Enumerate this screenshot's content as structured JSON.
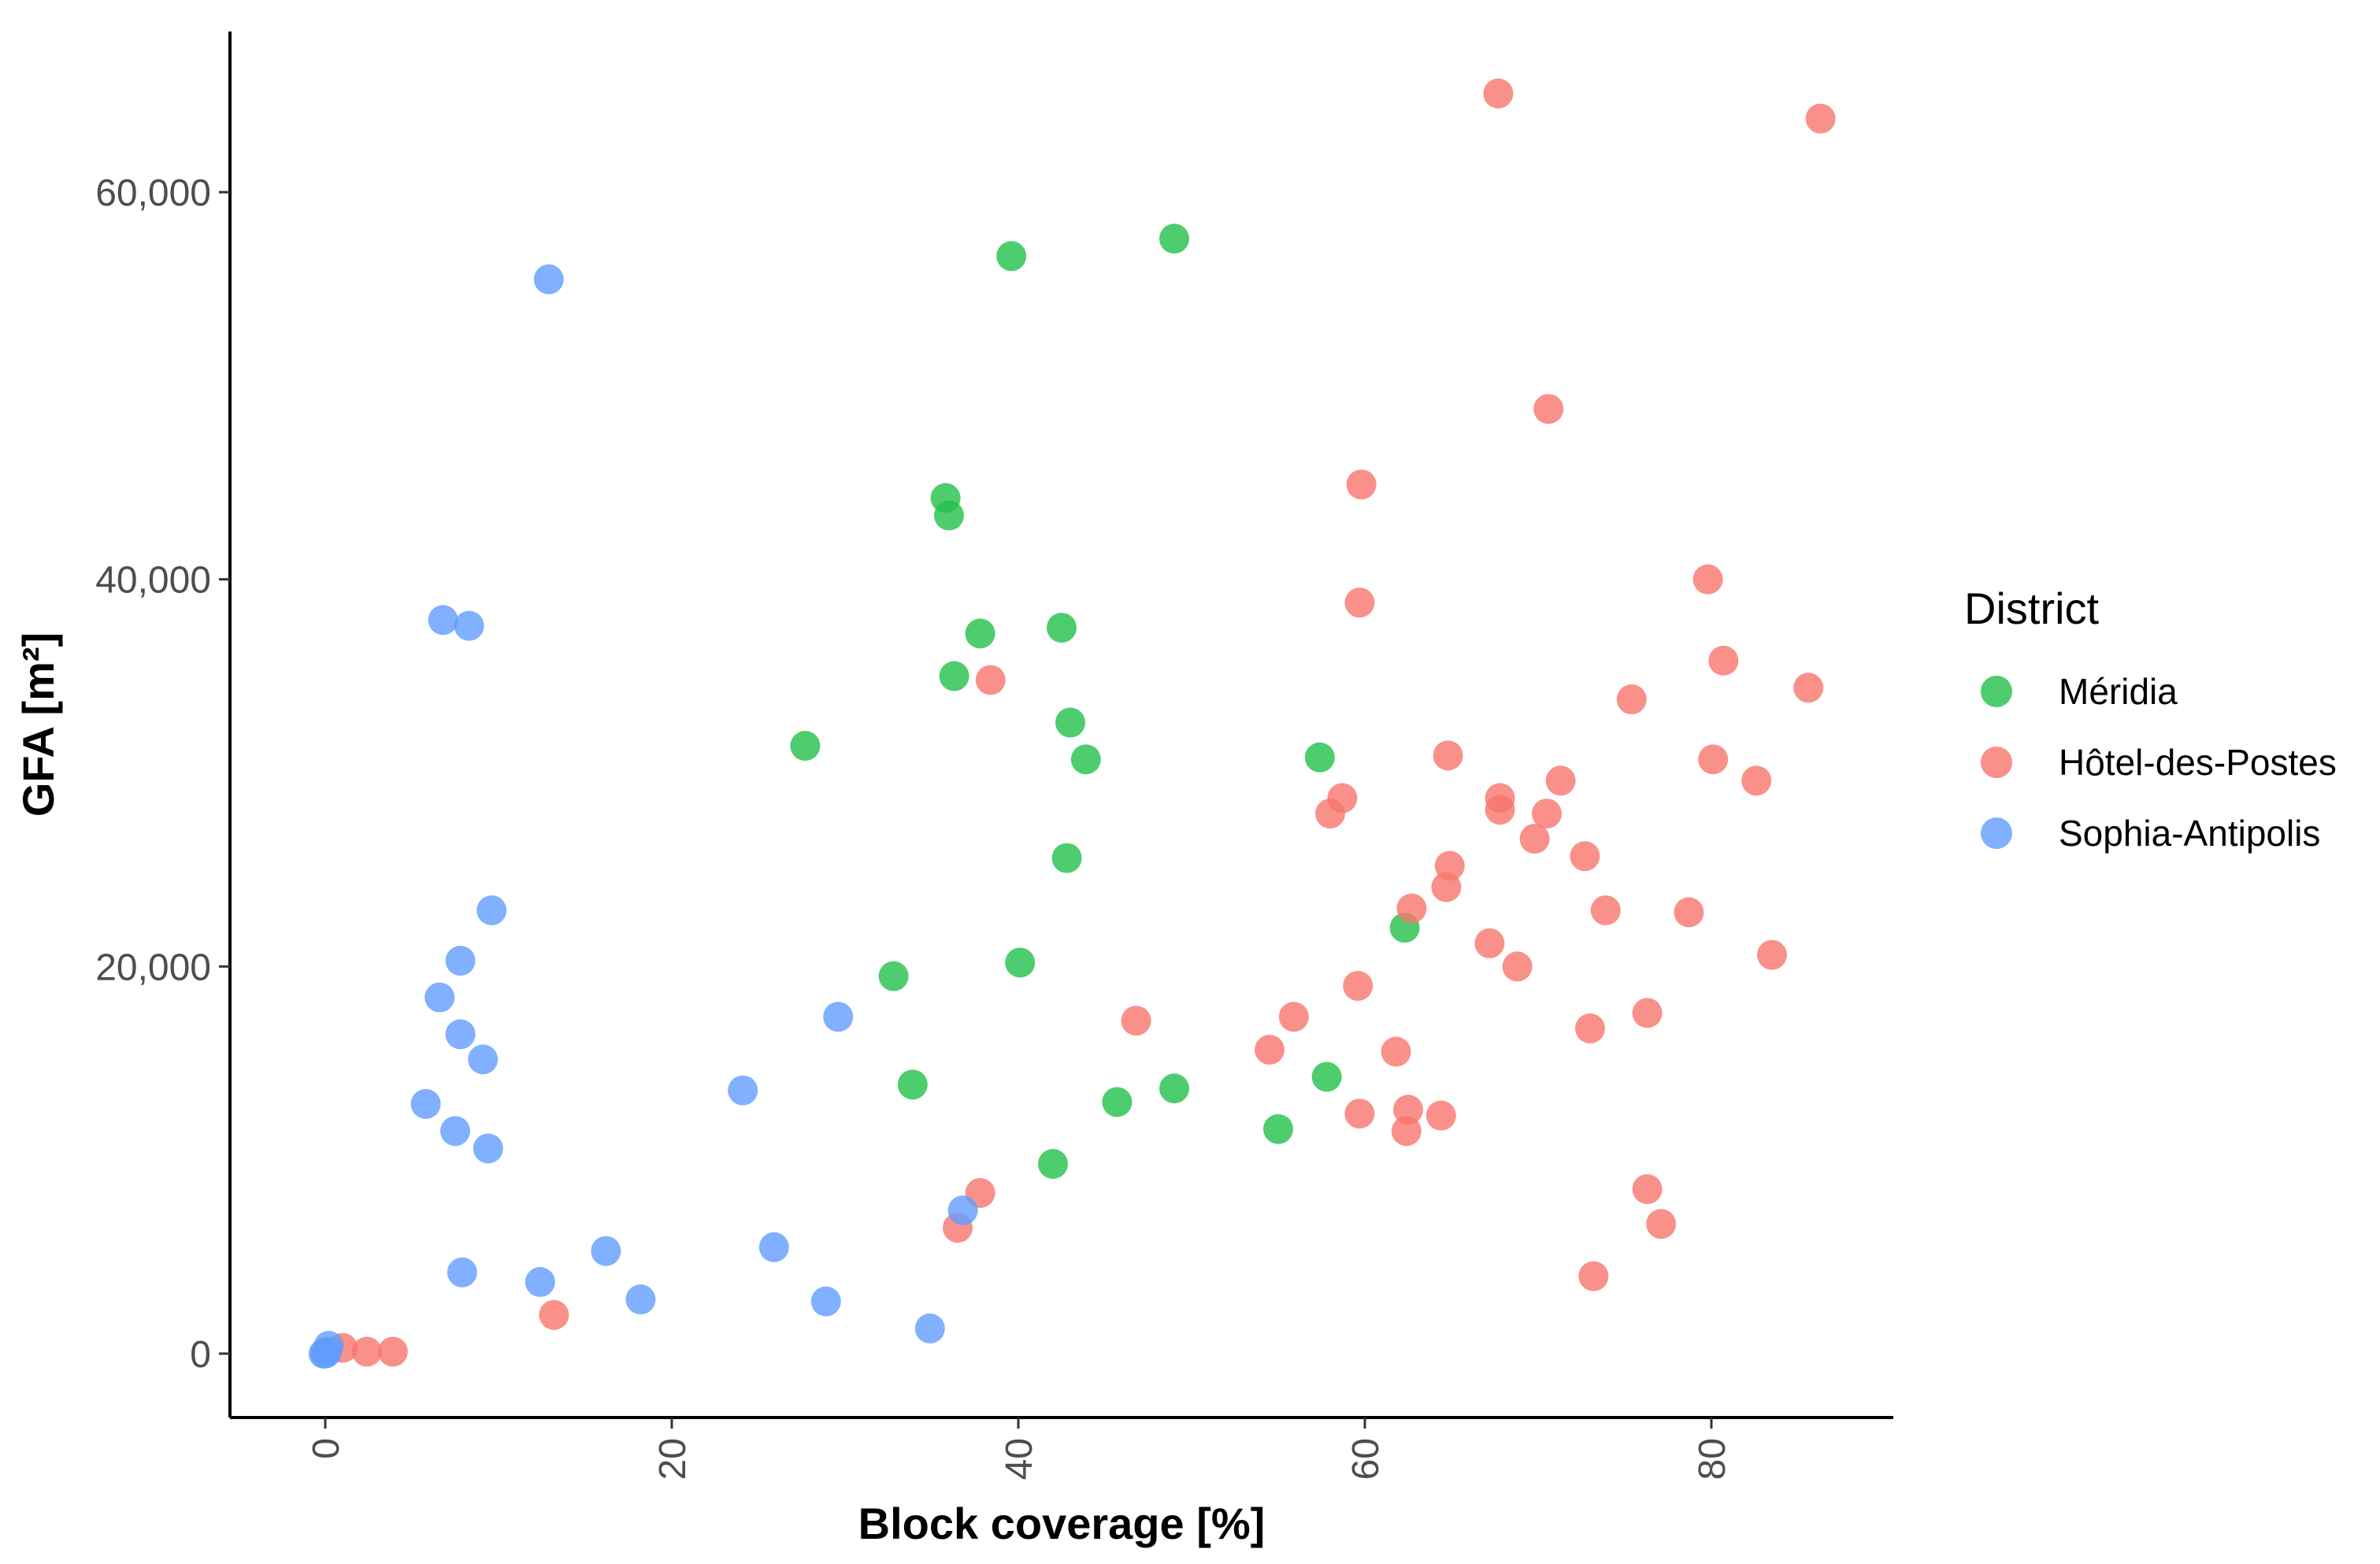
{
  "chart_data": {
    "type": "scatter",
    "title": "",
    "xlabel": "Block coverage [%]",
    "ylabel": "GFA [m²]",
    "xlim": [
      -5.5,
      90.5
    ],
    "ylim": [
      -3300,
      68300
    ],
    "x_ticks": [
      0,
      20,
      40,
      60,
      80
    ],
    "x_tick_labels": [
      "0",
      "20",
      "40",
      "60",
      "80"
    ],
    "y_ticks": [
      0,
      20000,
      40000,
      60000
    ],
    "y_tick_labels": [
      "0",
      "20,000",
      "40,000",
      "60,000"
    ],
    "grid": false,
    "legend": {
      "title": "District",
      "placement": "right"
    },
    "series": [
      {
        "name": "Méridia",
        "color": "#22C04A",
        "points": [
          [
            39.6,
            56700
          ],
          [
            49.0,
            57600
          ],
          [
            35.8,
            44200
          ],
          [
            36.0,
            43300
          ],
          [
            37.8,
            37200
          ],
          [
            42.5,
            37500
          ],
          [
            36.3,
            35000
          ],
          [
            27.7,
            31400
          ],
          [
            43.0,
            32600
          ],
          [
            43.9,
            30700
          ],
          [
            57.4,
            30800
          ],
          [
            42.8,
            25600
          ],
          [
            62.3,
            22000
          ],
          [
            40.1,
            20200
          ],
          [
            32.8,
            19500
          ],
          [
            33.9,
            13900
          ],
          [
            57.8,
            14300
          ],
          [
            49.0,
            13700
          ],
          [
            45.7,
            13000
          ],
          [
            55.0,
            11600
          ],
          [
            42.0,
            9800
          ]
        ]
      },
      {
        "name": "Hôtel-des-Postes",
        "color": "#F8766D",
        "points": [
          [
            67.7,
            65100
          ],
          [
            86.3,
            63800
          ],
          [
            70.6,
            48800
          ],
          [
            59.8,
            44900
          ],
          [
            79.8,
            40000
          ],
          [
            59.7,
            38800
          ],
          [
            80.7,
            35800
          ],
          [
            38.4,
            34800
          ],
          [
            85.6,
            34400
          ],
          [
            75.4,
            33800
          ],
          [
            64.8,
            30900
          ],
          [
            80.1,
            30700
          ],
          [
            71.3,
            29600
          ],
          [
            82.6,
            29600
          ],
          [
            58.7,
            28700
          ],
          [
            67.8,
            28700
          ],
          [
            58.0,
            27900
          ],
          [
            70.5,
            27900
          ],
          [
            67.8,
            28100
          ],
          [
            69.8,
            26600
          ],
          [
            72.7,
            25700
          ],
          [
            64.9,
            25200
          ],
          [
            64.7,
            24100
          ],
          [
            62.7,
            23000
          ],
          [
            73.9,
            22900
          ],
          [
            78.7,
            22800
          ],
          [
            67.2,
            21200
          ],
          [
            83.5,
            20600
          ],
          [
            68.8,
            20000
          ],
          [
            59.6,
            19000
          ],
          [
            46.8,
            17200
          ],
          [
            55.9,
            17400
          ],
          [
            76.3,
            17600
          ],
          [
            73.0,
            16800
          ],
          [
            54.5,
            15700
          ],
          [
            61.8,
            15600
          ],
          [
            59.7,
            12400
          ],
          [
            62.5,
            12600
          ],
          [
            64.4,
            12300
          ],
          [
            62.4,
            11500
          ],
          [
            37.8,
            8300
          ],
          [
            76.3,
            8500
          ],
          [
            36.5,
            6500
          ],
          [
            77.1,
            6700
          ],
          [
            73.2,
            4000
          ],
          [
            13.2,
            2000
          ],
          [
            1.0,
            300
          ],
          [
            2.4,
            100
          ],
          [
            3.9,
            100
          ]
        ]
      },
      {
        "name": "Sophia-Antipolis",
        "color": "#619CFF",
        "points": [
          [
            12.9,
            55500
          ],
          [
            6.8,
            37900
          ],
          [
            8.3,
            37600
          ],
          [
            9.6,
            22900
          ],
          [
            7.8,
            20300
          ],
          [
            6.6,
            18400
          ],
          [
            29.6,
            17400
          ],
          [
            7.8,
            16500
          ],
          [
            9.1,
            15200
          ],
          [
            24.1,
            13600
          ],
          [
            5.8,
            12900
          ],
          [
            7.5,
            11500
          ],
          [
            9.4,
            10600
          ],
          [
            36.8,
            7400
          ],
          [
            7.9,
            4200
          ],
          [
            12.4,
            3700
          ],
          [
            16.2,
            5300
          ],
          [
            25.9,
            5500
          ],
          [
            18.2,
            2800
          ],
          [
            28.9,
            2700
          ],
          [
            34.9,
            1300
          ],
          [
            0.2,
            400
          ],
          [
            0.0,
            0
          ],
          [
            -0.1,
            0
          ],
          [
            0.1,
            100
          ]
        ]
      }
    ]
  }
}
